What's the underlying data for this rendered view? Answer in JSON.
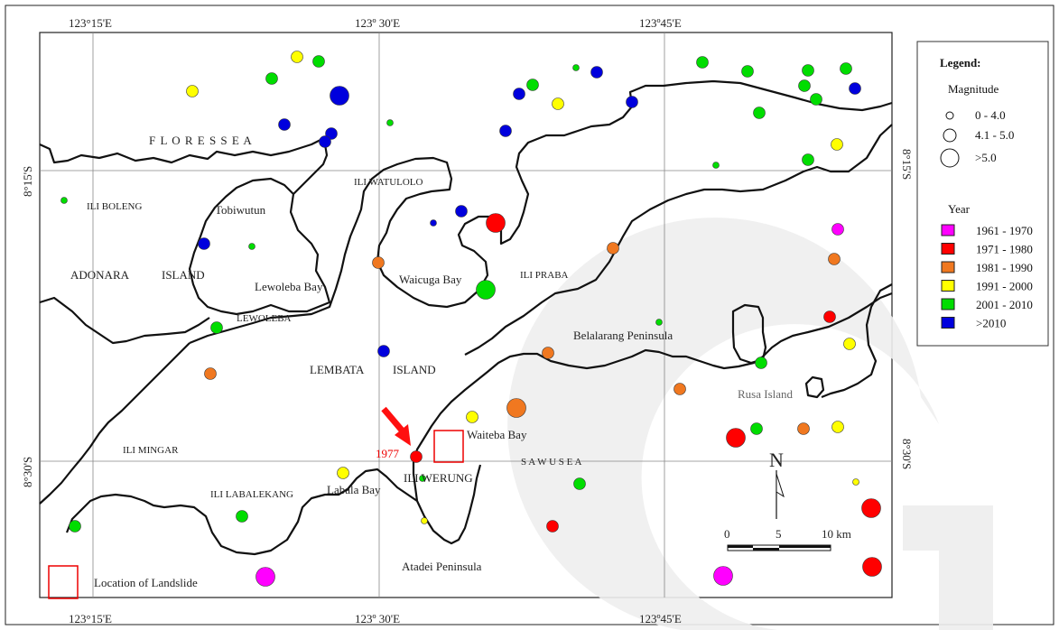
{
  "coordinates": {
    "top": [
      "123°15'E",
      "123º 30'E",
      "123º45'E"
    ],
    "bottom": [
      "123°15'E",
      "123º 30'E",
      "123º45'E"
    ],
    "left": [
      "8°15'S",
      "8°30'S"
    ],
    "right": [
      "8°15'S",
      "8°30'S"
    ]
  },
  "labels": {
    "flores_sea": "F L O R E S     S E A",
    "sawu_sea": "S  A  W  U      S  E  A",
    "ili_boleng": "ILI BOLENG",
    "tobiwutun": "Tobiwutun",
    "ili_watulolo": "ILI WATULOLO",
    "adonara": "ADONARA",
    "island_a": "ISLAND",
    "lewoleba_bay": "Lewoleba Bay",
    "lewoleba": "LEWOLEBA",
    "waicuga_bay": "Waicuga Bay",
    "ili_praba": "ILI PRABA",
    "belalarang": "Belalarang Peninsula",
    "lembata": "LEMBATA",
    "island_l": "ISLAND",
    "rusa_island": "Rusa Island",
    "waiteba_bay": "Waiteba Bay",
    "ili_mingar": "ILI MINGAR",
    "year_1977": "1977",
    "ili_werung": "ILI WERUNG",
    "ili_labalekang": "ILI LABALEKANG",
    "labala_bay": "Labala Bay",
    "atadei": "Atadei Peninsula",
    "location_landslide": "Location of Landslide"
  },
  "scale": {
    "ticks": [
      "0",
      "5",
      "10 km"
    ],
    "north": "N"
  },
  "legend": {
    "title": "Legend:",
    "magnitude_title": "Magnitude",
    "magnitudes": [
      "0 - 4.0",
      "4.1 - 5.0",
      ">5.0"
    ],
    "year_title": "Year",
    "years": [
      {
        "label": "1961 - 1970",
        "color": "#ff00ff"
      },
      {
        "label": "1971 - 1980",
        "color": "#ff0000"
      },
      {
        "label": "1981 - 1990",
        "color": "#f07820"
      },
      {
        "label": "1991 - 2000",
        "color": "#ffff00"
      },
      {
        "label": "2001 - 2010",
        "color": "#00dd00"
      },
      {
        "label": ">2010",
        "color": "#0000dd"
      }
    ]
  }
}
